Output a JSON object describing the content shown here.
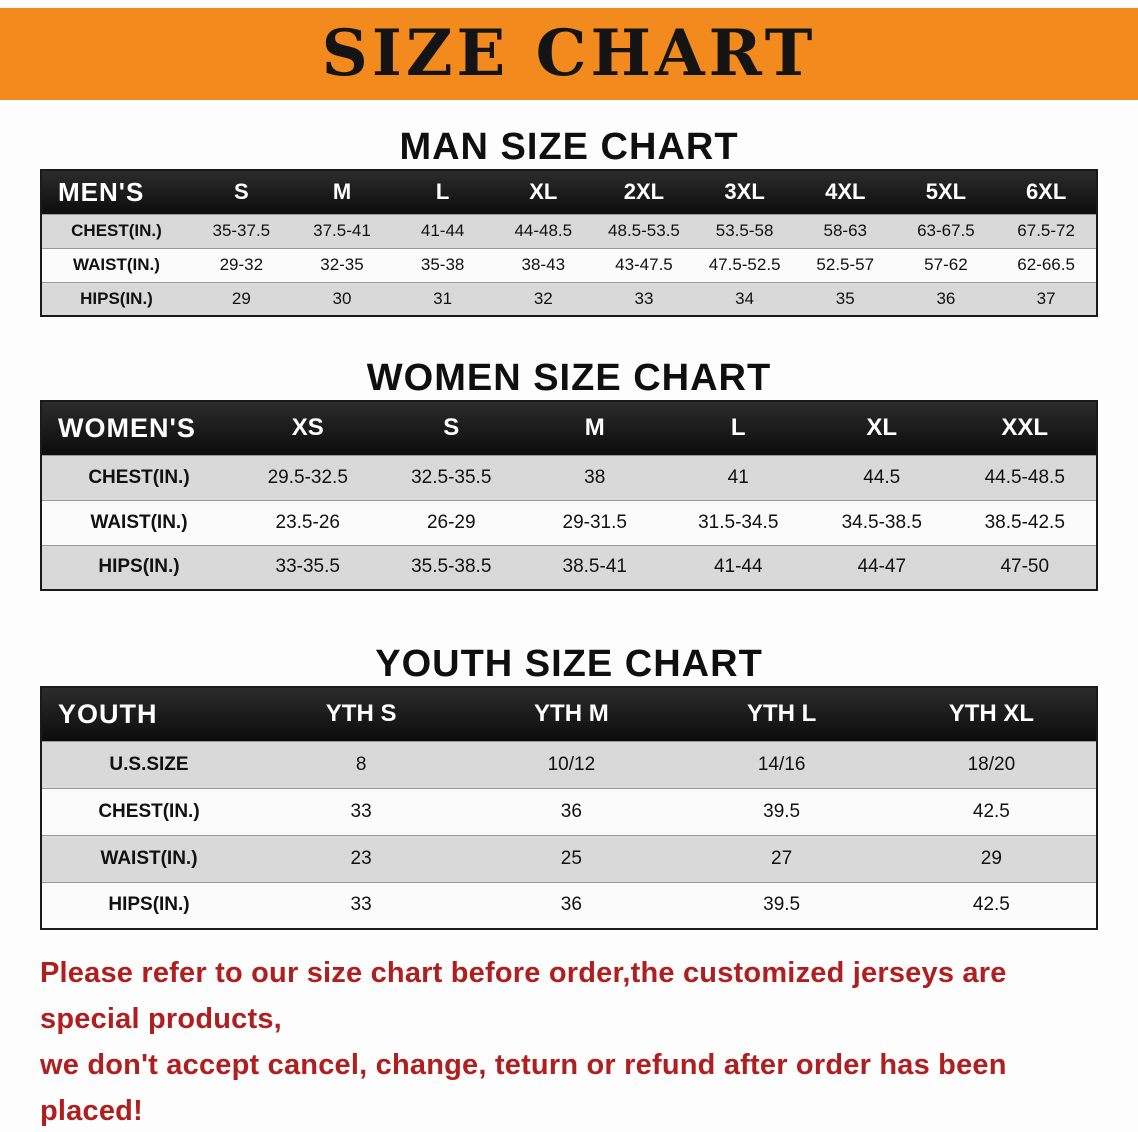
{
  "banner": {
    "title": "SIZE CHART",
    "bg_color": "#f28a1e",
    "text_color": "#141414"
  },
  "sections": [
    {
      "heading": "MAN SIZE CHART",
      "table": {
        "header": [
          "MEN'S",
          "S",
          "M",
          "L",
          "XL",
          "2XL",
          "3XL",
          "4XL",
          "5XL",
          "6XL"
        ],
        "rows": [
          {
            "label": "CHEST(IN.)",
            "values": [
              "35-37.5",
              "37.5-41",
              "41-44",
              "44-48.5",
              "48.5-53.5",
              "53.5-58",
              "58-63",
              "63-67.5",
              "67.5-72"
            ]
          },
          {
            "label": "WAIST(IN.)",
            "values": [
              "29-32",
              "32-35",
              "35-38",
              "38-43",
              "43-47.5",
              "47.5-52.5",
              "52.5-57",
              "57-62",
              "62-66.5"
            ]
          },
          {
            "label": "HIPS(IN.)",
            "values": [
              "29",
              "30",
              "31",
              "32",
              "33",
              "34",
              "35",
              "36",
              "37"
            ]
          }
        ]
      }
    },
    {
      "heading": "WOMEN SIZE CHART",
      "table": {
        "header": [
          "WOMEN'S",
          "XS",
          "S",
          "M",
          "L",
          "XL",
          "XXL"
        ],
        "rows": [
          {
            "label": "CHEST(IN.)",
            "values": [
              "29.5-32.5",
              "32.5-35.5",
              "38",
              "41",
              "44.5",
              "44.5-48.5"
            ]
          },
          {
            "label": "WAIST(IN.)",
            "values": [
              "23.5-26",
              "26-29",
              "29-31.5",
              "31.5-34.5",
              "34.5-38.5",
              "38.5-42.5"
            ]
          },
          {
            "label": "HIPS(IN.)",
            "values": [
              "33-35.5",
              "35.5-38.5",
              "38.5-41",
              "41-44",
              "44-47",
              "47-50"
            ]
          }
        ]
      }
    },
    {
      "heading": "YOUTH SIZE CHART",
      "table": {
        "header": [
          "YOUTH",
          "YTH S",
          "YTH M",
          "YTH L",
          "YTH XL"
        ],
        "rows": [
          {
            "label": "U.S.SIZE",
            "values": [
              "8",
              "10/12",
              "14/16",
              "18/20"
            ]
          },
          {
            "label": "CHEST(IN.)",
            "values": [
              "33",
              "36",
              "39.5",
              "42.5"
            ]
          },
          {
            "label": "WAIST(IN.)",
            "values": [
              "23",
              "25",
              "27",
              "29"
            ]
          },
          {
            "label": "HIPS(IN.)",
            "values": [
              "33",
              "36",
              "39.5",
              "42.5"
            ]
          }
        ]
      }
    }
  ],
  "disclaimer": {
    "line1": "Please refer to our size chart before order,the customized jerseys are special products,",
    "line2": "we don't accept cancel, change, teturn or refund after order has been placed!",
    "color": "#b01f1f"
  }
}
